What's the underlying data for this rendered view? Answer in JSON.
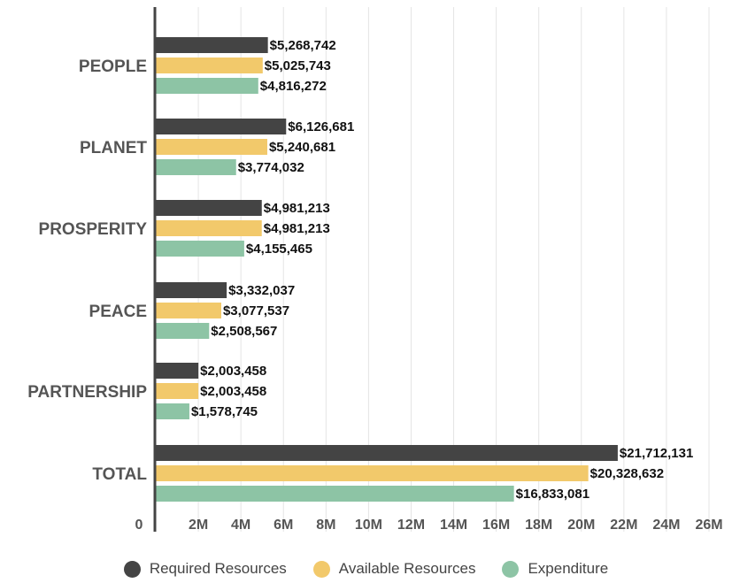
{
  "chart_data": {
    "type": "bar",
    "orientation": "horizontal",
    "categories": [
      "PEOPLE",
      "PLANET",
      "PROSPERITY",
      "PEACE",
      "PARTNERSHIP",
      "TOTAL"
    ],
    "series": [
      {
        "name": "Required Resources",
        "color": "#444444",
        "values": [
          5268742,
          6126681,
          4981213,
          3332037,
          2003458,
          21712131
        ],
        "labels": [
          "$5,268,742",
          "$6,126,681",
          "$4,981,213",
          "$3,332,037",
          "$2,003,458",
          "$21,712,131"
        ]
      },
      {
        "name": "Available Resources",
        "color": "#F2C96B",
        "values": [
          5025743,
          5240681,
          4981213,
          3077537,
          2003458,
          20328632
        ],
        "labels": [
          "$5,025,743",
          "$5,240,681",
          "$4,981,213",
          "$3,077,537",
          "$2,003,458",
          "$20,328,632"
        ]
      },
      {
        "name": "Expenditure",
        "color": "#8DC4A5",
        "values": [
          4816272,
          3774032,
          4155465,
          2508567,
          1578745,
          16833081
        ],
        "labels": [
          "$4,816,272",
          "$3,774,032",
          "$4,155,465",
          "$2,508,567",
          "$1,578,745",
          "$16,833,081"
        ]
      }
    ],
    "xlim": [
      0,
      26000000
    ],
    "xticks": [
      {
        "value": 0,
        "label": "0"
      },
      {
        "value": 2000000,
        "label": "2M"
      },
      {
        "value": 4000000,
        "label": "4M"
      },
      {
        "value": 6000000,
        "label": "6M"
      },
      {
        "value": 8000000,
        "label": "8M"
      },
      {
        "value": 10000000,
        "label": "10M"
      },
      {
        "value": 12000000,
        "label": "12M"
      },
      {
        "value": 14000000,
        "label": "14M"
      },
      {
        "value": 16000000,
        "label": "16M"
      },
      {
        "value": 18000000,
        "label": "18M"
      },
      {
        "value": 20000000,
        "label": "20M"
      },
      {
        "value": 22000000,
        "label": "22M"
      },
      {
        "value": 24000000,
        "label": "24M"
      },
      {
        "value": 26000000,
        "label": "26M"
      }
    ],
    "grid": true,
    "legend_position": "bottom"
  }
}
